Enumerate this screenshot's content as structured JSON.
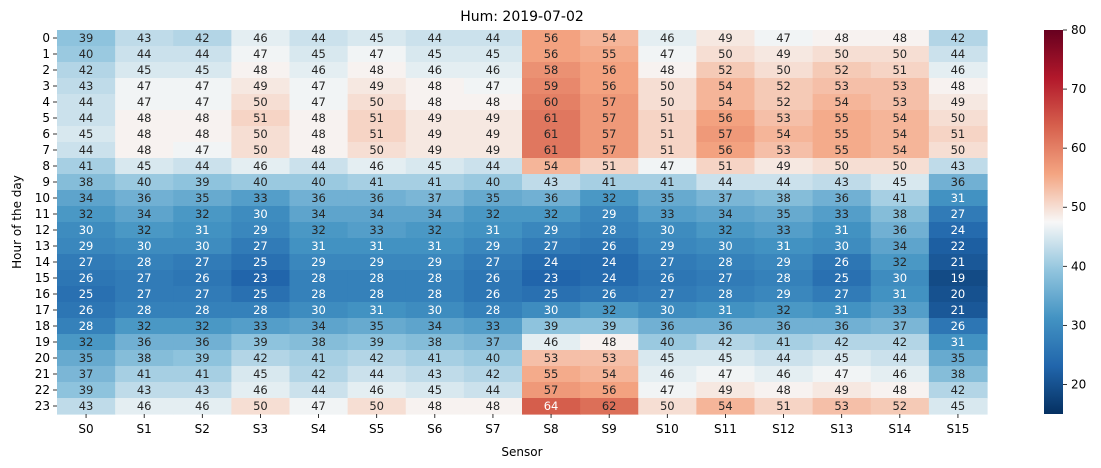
{
  "chart_data": {
    "type": "heatmap",
    "title": "Hum: 2019-07-02",
    "xlabel": "Sensor",
    "ylabel": "Hour of the day",
    "x_categories": [
      "S0",
      "S1",
      "S2",
      "S3",
      "S4",
      "S5",
      "S6",
      "S7",
      "S8",
      "S9",
      "S10",
      "S11",
      "S12",
      "S13",
      "S14",
      "S15"
    ],
    "y_categories": [
      "0",
      "1",
      "2",
      "3",
      "4",
      "5",
      "6",
      "7",
      "8",
      "9",
      "10",
      "11",
      "12",
      "13",
      "14",
      "15",
      "16",
      "17",
      "18",
      "19",
      "20",
      "21",
      "22",
      "23"
    ],
    "values": [
      [
        39,
        43,
        42,
        46,
        44,
        45,
        44,
        44,
        56,
        54,
        46,
        49,
        47,
        48,
        48,
        42
      ],
      [
        40,
        44,
        44,
        47,
        45,
        47,
        45,
        45,
        56,
        55,
        47,
        50,
        49,
        50,
        50,
        44
      ],
      [
        42,
        45,
        45,
        48,
        46,
        48,
        46,
        46,
        58,
        56,
        48,
        52,
        50,
        52,
        51,
        46
      ],
      [
        43,
        47,
        47,
        49,
        47,
        49,
        48,
        47,
        59,
        56,
        50,
        54,
        52,
        53,
        53,
        48
      ],
      [
        44,
        47,
        47,
        50,
        47,
        50,
        48,
        48,
        60,
        57,
        50,
        54,
        52,
        54,
        53,
        49
      ],
      [
        44,
        48,
        48,
        51,
        48,
        51,
        49,
        49,
        61,
        57,
        51,
        56,
        53,
        55,
        54,
        50
      ],
      [
        45,
        48,
        48,
        50,
        48,
        51,
        49,
        49,
        61,
        57,
        51,
        57,
        54,
        55,
        54,
        51
      ],
      [
        44,
        48,
        47,
        50,
        48,
        50,
        49,
        49,
        61,
        57,
        51,
        56,
        53,
        55,
        54,
        50
      ],
      [
        41,
        45,
        44,
        46,
        44,
        46,
        45,
        44,
        54,
        51,
        47,
        51,
        49,
        50,
        50,
        43
      ],
      [
        38,
        40,
        39,
        40,
        40,
        41,
        41,
        40,
        43,
        41,
        41,
        44,
        44,
        43,
        45,
        36
      ],
      [
        34,
        36,
        35,
        33,
        36,
        36,
        37,
        35,
        36,
        32,
        35,
        37,
        38,
        36,
        41,
        31
      ],
      [
        32,
        34,
        32,
        30,
        34,
        34,
        34,
        32,
        32,
        29,
        33,
        34,
        35,
        33,
        38,
        27
      ],
      [
        30,
        32,
        31,
        29,
        32,
        33,
        32,
        31,
        29,
        28,
        30,
        32,
        33,
        31,
        36,
        24
      ],
      [
        29,
        30,
        30,
        27,
        31,
        31,
        31,
        29,
        27,
        26,
        29,
        30,
        31,
        30,
        34,
        22
      ],
      [
        27,
        28,
        27,
        25,
        29,
        29,
        29,
        27,
        24,
        24,
        27,
        28,
        29,
        26,
        32,
        21
      ],
      [
        26,
        27,
        26,
        23,
        28,
        28,
        28,
        26,
        23,
        24,
        26,
        27,
        28,
        25,
        30,
        19
      ],
      [
        25,
        27,
        27,
        25,
        28,
        28,
        28,
        26,
        25,
        26,
        27,
        28,
        29,
        27,
        31,
        20
      ],
      [
        26,
        28,
        28,
        28,
        30,
        31,
        30,
        28,
        30,
        32,
        30,
        31,
        32,
        31,
        33,
        21
      ],
      [
        28,
        32,
        32,
        33,
        34,
        35,
        34,
        33,
        39,
        39,
        36,
        36,
        36,
        36,
        37,
        26
      ],
      [
        32,
        36,
        36,
        39,
        38,
        39,
        38,
        37,
        46,
        48,
        40,
        42,
        41,
        42,
        42,
        31
      ],
      [
        35,
        38,
        39,
        42,
        41,
        42,
        41,
        40,
        53,
        53,
        45,
        45,
        44,
        45,
        44,
        35
      ],
      [
        37,
        41,
        41,
        45,
        42,
        44,
        43,
        42,
        55,
        54,
        46,
        47,
        46,
        47,
        46,
        38
      ],
      [
        39,
        43,
        43,
        46,
        44,
        46,
        45,
        44,
        57,
        56,
        47,
        49,
        48,
        49,
        48,
        42
      ],
      [
        43,
        46,
        46,
        50,
        47,
        50,
        48,
        48,
        64,
        62,
        50,
        54,
        51,
        53,
        52,
        45
      ]
    ],
    "colormap": "RdBu_r",
    "vmin": 15,
    "vmax": 80,
    "annotated": true,
    "colorbar": {
      "ticks": [
        "20",
        "30",
        "40",
        "50",
        "60",
        "70",
        "80"
      ],
      "position": "right"
    }
  }
}
